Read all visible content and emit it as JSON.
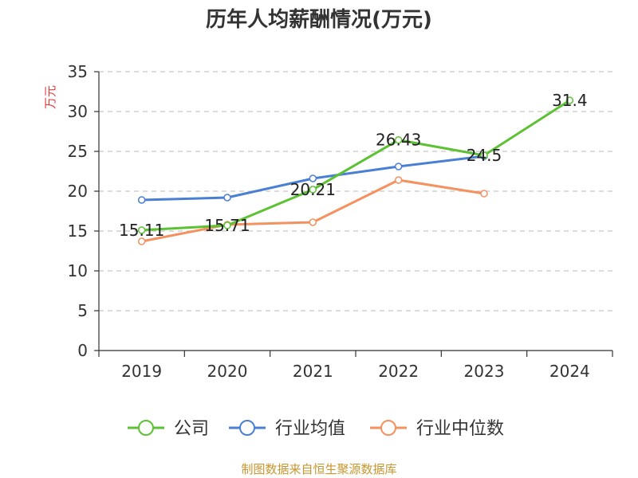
{
  "chart_data": {
    "type": "line",
    "title": "历年人均薪酬情况(万元)",
    "ylabel": "万元",
    "xlabel": "",
    "categories": [
      "2019",
      "2020",
      "2021",
      "2022",
      "2023",
      "2024"
    ],
    "ylim": [
      0,
      35
    ],
    "yticks": [
      0,
      5,
      10,
      15,
      20,
      25,
      30,
      35
    ],
    "grid": true,
    "legend_position": "bottom",
    "series": [
      {
        "name": "公司",
        "color": "#5cc234",
        "values": [
          15.11,
          15.71,
          20.21,
          26.43,
          24.5,
          31.4
        ],
        "labels": [
          "15.11",
          "15.71",
          "20.21",
          "26.43",
          "24.5",
          "31.4"
        ]
      },
      {
        "name": "行业均值",
        "color": "#4a7fd6",
        "values": [
          18.9,
          19.2,
          21.6,
          23.1,
          24.4,
          null
        ]
      },
      {
        "name": "行业中位数",
        "color": "#f5915e",
        "values": [
          13.7,
          15.8,
          16.1,
          21.4,
          19.7,
          null
        ]
      }
    ]
  },
  "source": "制图数据来自恒生聚源数据库"
}
